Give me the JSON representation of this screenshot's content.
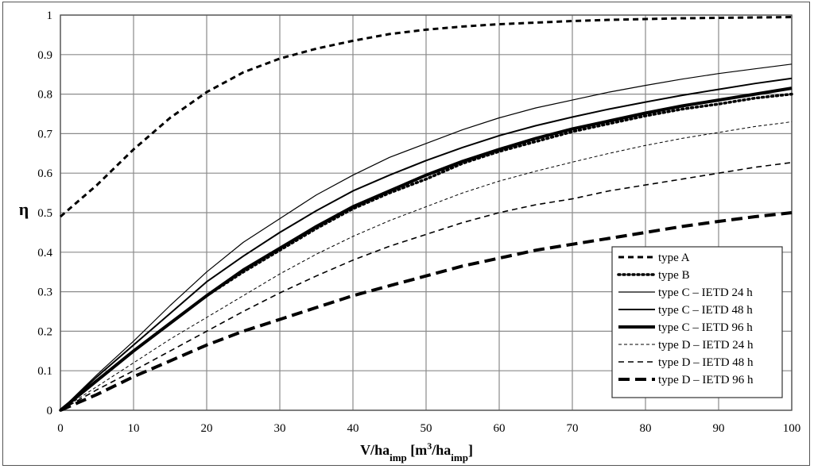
{
  "chart_data": {
    "type": "line",
    "xlabel": {
      "main": "V/ha",
      "sub1": "imp",
      "mid": " [m",
      "sup": "3",
      "mid2": "/ha",
      "sub2": "imp",
      "end": "]"
    },
    "ylabel": "η",
    "xlim": [
      0,
      100
    ],
    "ylim": [
      0,
      1
    ],
    "xticks": [
      "0",
      "10",
      "20",
      "30",
      "40",
      "50",
      "60",
      "70",
      "80",
      "90",
      "100"
    ],
    "yticks": [
      "0",
      "0.1",
      "0.2",
      "0.3",
      "0.4",
      "0.5",
      "0.6",
      "0.7",
      "0.8",
      "0.9",
      "1"
    ],
    "grid": true,
    "legend_position": "bottom-right",
    "x": [
      0,
      5,
      10,
      15,
      20,
      25,
      30,
      35,
      40,
      45,
      50,
      55,
      60,
      65,
      70,
      75,
      80,
      85,
      90,
      95,
      100
    ],
    "series": [
      {
        "name": "type A",
        "style": {
          "dash": "7,5",
          "width": 3
        },
        "values": [
          0.49,
          0.57,
          0.66,
          0.74,
          0.805,
          0.855,
          0.89,
          0.915,
          0.935,
          0.952,
          0.963,
          0.971,
          0.977,
          0.981,
          0.985,
          0.988,
          0.99,
          0.992,
          0.993,
          0.994,
          0.995
        ]
      },
      {
        "name": "type B",
        "style": {
          "dash": "2,4",
          "width": 3.5
        },
        "values": [
          0,
          0.075,
          0.15,
          0.22,
          0.29,
          0.35,
          0.405,
          0.46,
          0.51,
          0.55,
          0.585,
          0.625,
          0.655,
          0.68,
          0.705,
          0.725,
          0.745,
          0.762,
          0.775,
          0.79,
          0.8
        ]
      },
      {
        "name": "type C – IETD 24 h",
        "style": {
          "dash": "",
          "width": 1.2
        },
        "values": [
          0,
          0.09,
          0.175,
          0.265,
          0.35,
          0.425,
          0.485,
          0.545,
          0.595,
          0.64,
          0.675,
          0.71,
          0.74,
          0.765,
          0.785,
          0.805,
          0.822,
          0.838,
          0.852,
          0.864,
          0.876
        ]
      },
      {
        "name": "type C – IETD 48 h",
        "style": {
          "dash": "",
          "width": 2
        },
        "values": [
          0,
          0.085,
          0.165,
          0.245,
          0.325,
          0.39,
          0.45,
          0.505,
          0.555,
          0.595,
          0.632,
          0.665,
          0.695,
          0.72,
          0.742,
          0.762,
          0.78,
          0.797,
          0.812,
          0.827,
          0.84
        ]
      },
      {
        "name": "type C – IETD 96 h",
        "style": {
          "dash": "",
          "width": 4
        },
        "values": [
          0,
          0.075,
          0.15,
          0.22,
          0.29,
          0.355,
          0.41,
          0.465,
          0.515,
          0.555,
          0.595,
          0.63,
          0.66,
          0.688,
          0.712,
          0.732,
          0.752,
          0.77,
          0.785,
          0.8,
          0.815
        ]
      },
      {
        "name": "type D – IETD 24 h",
        "style": {
          "dash": "4,3",
          "width": 1
        },
        "values": [
          0,
          0.06,
          0.12,
          0.18,
          0.235,
          0.29,
          0.345,
          0.395,
          0.44,
          0.48,
          0.515,
          0.55,
          0.58,
          0.605,
          0.628,
          0.65,
          0.67,
          0.688,
          0.703,
          0.718,
          0.73
        ]
      },
      {
        "name": "type D – IETD 48 h",
        "style": {
          "dash": "7,5",
          "width": 1.6
        },
        "values": [
          0,
          0.052,
          0.1,
          0.15,
          0.2,
          0.25,
          0.297,
          0.34,
          0.38,
          0.415,
          0.445,
          0.475,
          0.5,
          0.52,
          0.535,
          0.555,
          0.57,
          0.585,
          0.6,
          0.615,
          0.627
        ]
      },
      {
        "name": "type D – IETD 96 h",
        "style": {
          "dash": "14,7",
          "width": 4
        },
        "values": [
          0,
          0.04,
          0.085,
          0.125,
          0.165,
          0.2,
          0.23,
          0.26,
          0.29,
          0.315,
          0.34,
          0.365,
          0.385,
          0.405,
          0.42,
          0.435,
          0.45,
          0.465,
          0.478,
          0.49,
          0.5
        ]
      }
    ]
  }
}
